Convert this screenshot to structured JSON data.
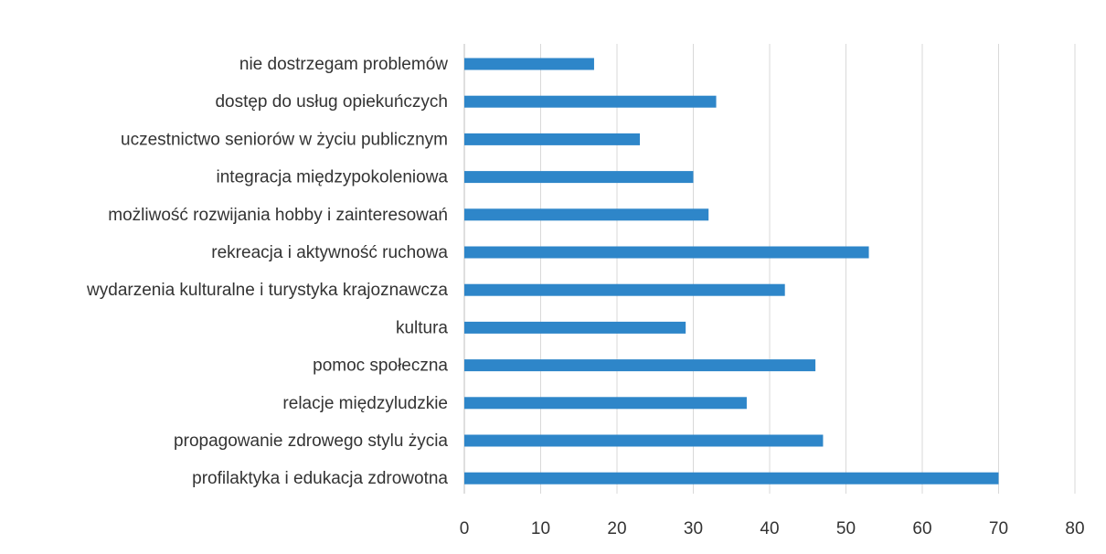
{
  "chart_data": {
    "type": "bar",
    "orientation": "horizontal",
    "title": "",
    "xlabel": "",
    "ylabel": "",
    "categories": [
      "nie dostrzegam problemów",
      "dostęp do usług opiekuńczych",
      "uczestnictwo seniorów w życiu publicznym",
      "integracja międzypokoleniowa",
      "możliwość rozwijania hobby i zainteresowań",
      "rekreacja i aktywność ruchowa",
      "wydarzenia kulturalne i turystyka krajoznawcza",
      "kultura",
      "pomoc społeczna",
      "relacje międzyludzkie",
      "propagowanie zdrowego stylu życia",
      "profilaktyka i edukacja zdrowotna"
    ],
    "values": [
      17,
      33,
      23,
      30,
      32,
      53,
      42,
      29,
      46,
      37,
      47,
      70
    ],
    "xlim": [
      0,
      80
    ],
    "xticks": [
      "0",
      "10",
      "20",
      "30",
      "40",
      "50",
      "60",
      "70",
      "80"
    ],
    "grid": true,
    "legend": "none",
    "bar_color": "#2e86c9"
  }
}
